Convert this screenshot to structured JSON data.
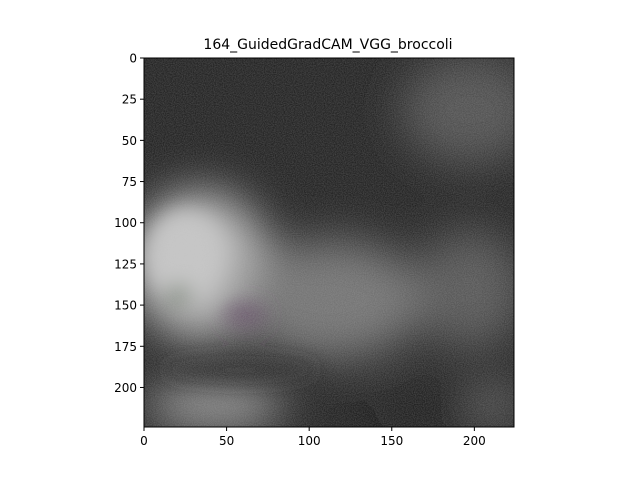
{
  "chart_data": {
    "type": "heatmap",
    "title": "164_GuidedGradCAM_VGG_broccoli",
    "xlabel": "",
    "ylabel": "",
    "xlim": [
      0,
      224
    ],
    "ylim": [
      224,
      0
    ],
    "x_ticks": [
      0,
      50,
      100,
      150,
      200
    ],
    "y_ticks": [
      0,
      25,
      50,
      75,
      100,
      125,
      150,
      175,
      200
    ],
    "grid": false,
    "colormap": "grayscale-rgb",
    "image_width": 224,
    "image_height": 224,
    "colors": {
      "dark_base": "#141414",
      "bright_region": "#bcbcbc",
      "mid_region": "#707070",
      "purple_tint": "#5e4660",
      "green_tint": "#5e6e58"
    }
  }
}
